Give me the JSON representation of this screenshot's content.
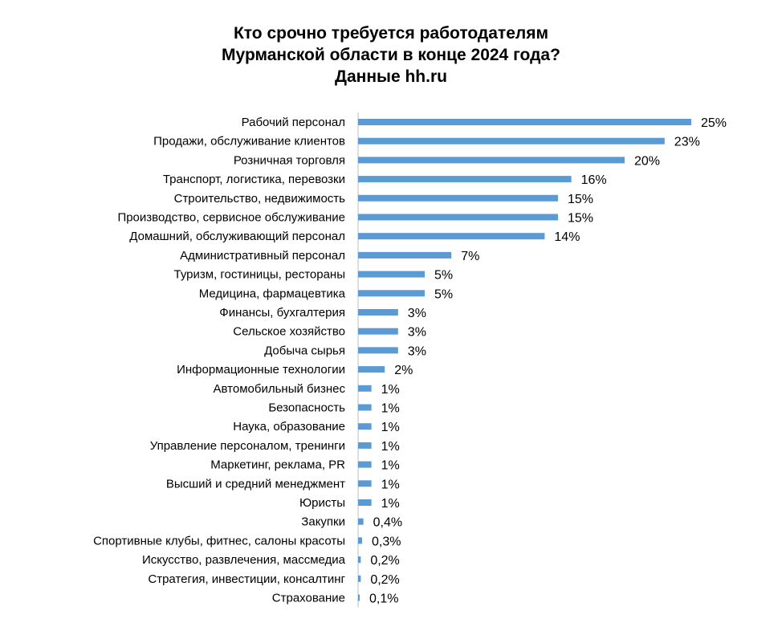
{
  "chart_data": {
    "type": "bar",
    "orientation": "horizontal",
    "title_lines": [
      "Кто срочно требуется работодателям",
      "Мурманской области в конце 2024 года?",
      "Данные hh.ru"
    ],
    "bar_color": "#5B9BD5",
    "categories": [
      "Рабочий персонал",
      "Продажи, обслуживание клиентов",
      "Розничная торговля",
      "Транспорт, логистика, перевозки",
      "Строительство, недвижимость",
      "Производство, сервисное обслуживание",
      "Домашний, обслуживающий персонал",
      "Административный персонал",
      "Туризм, гостиницы, рестораны",
      "Медицина, фармацевтика",
      "Финансы, бухгалтерия",
      "Сельское хозяйство",
      "Добыча сырья",
      "Информационные технологии",
      "Автомобильный бизнес",
      "Безопасность",
      "Наука, образование",
      "Управление персоналом, тренинги",
      "Маркетинг, реклама, PR",
      "Высший и средний менеджмент",
      "Юристы",
      "Закупки",
      "Спортивные клубы, фитнес, салоны красоты",
      "Искусство, развлечения, массмедиа",
      "Стратегия, инвестиции, консалтинг",
      "Страхование"
    ],
    "values": [
      25,
      23,
      20,
      16,
      15,
      15,
      14,
      7,
      5,
      5,
      3,
      3,
      3,
      2,
      1,
      1,
      1,
      1,
      1,
      1,
      1,
      0.4,
      0.3,
      0.2,
      0.2,
      0.1
    ],
    "value_labels": [
      "25%",
      "23%",
      "20%",
      "16%",
      "15%",
      "15%",
      "14%",
      "7%",
      "5%",
      "5%",
      "3%",
      "3%",
      "3%",
      "2%",
      "1%",
      "1%",
      "1%",
      "1%",
      "1%",
      "1%",
      "1%",
      "0,4%",
      "0,3%",
      "0,2%",
      "0,2%",
      "0,1%"
    ],
    "xlim": [
      0,
      25
    ],
    "grid": false,
    "legend": "none"
  }
}
